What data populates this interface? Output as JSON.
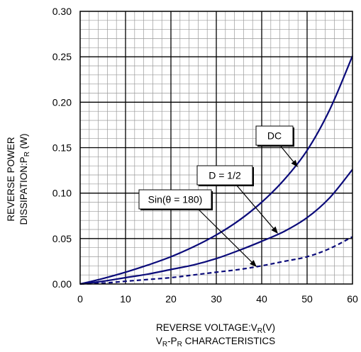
{
  "chart_data": {
    "type": "line",
    "xlim": [
      0,
      60
    ],
    "ylim": [
      0,
      0.3
    ],
    "x_ticks": [
      "0",
      "10",
      "20",
      "30",
      "40",
      "50",
      "60"
    ],
    "y_ticks": [
      "0.00",
      "0.05",
      "0.10",
      "0.15",
      "0.20",
      "0.25",
      "0.30"
    ],
    "grid": true,
    "xlabel": {
      "main": "REVERSE VOLTAGE:V",
      "sub": "R",
      "unit": "(V)"
    },
    "ylabel": {
      "line1": "REVERSE POWER",
      "line2_main": "DISSIPATION:P",
      "line2_sub": "R",
      "line2_unit": " (W)"
    },
    "caption": {
      "p1": "V",
      "s1": "R",
      "mid": "-P",
      "s2": "R",
      "p2": " CHARACTERISTICS"
    },
    "series": [
      {
        "name": "DC",
        "style": "solid",
        "x": [
          0,
          5,
          10,
          15,
          20,
          25,
          30,
          35,
          40,
          45,
          50,
          55,
          60
        ],
        "y": [
          0.0,
          0.006,
          0.013,
          0.021,
          0.03,
          0.041,
          0.054,
          0.07,
          0.09,
          0.115,
          0.147,
          0.192,
          0.251
        ]
      },
      {
        "name": "D = 1/2",
        "style": "solid",
        "x": [
          0,
          5,
          10,
          15,
          20,
          25,
          30,
          35,
          40,
          45,
          50,
          55,
          60
        ],
        "y": [
          0.0,
          0.003,
          0.007,
          0.011,
          0.016,
          0.021,
          0.028,
          0.037,
          0.047,
          0.058,
          0.073,
          0.095,
          0.126
        ]
      },
      {
        "name": "Sin(θ = 180)",
        "style": "dashed",
        "x": [
          0,
          5,
          10,
          15,
          20,
          25,
          30,
          35,
          40,
          45,
          50,
          55,
          60
        ],
        "y": [
          0.0,
          0.001,
          0.003,
          0.005,
          0.007,
          0.01,
          0.013,
          0.016,
          0.02,
          0.025,
          0.03,
          0.039,
          0.052
        ]
      }
    ]
  }
}
